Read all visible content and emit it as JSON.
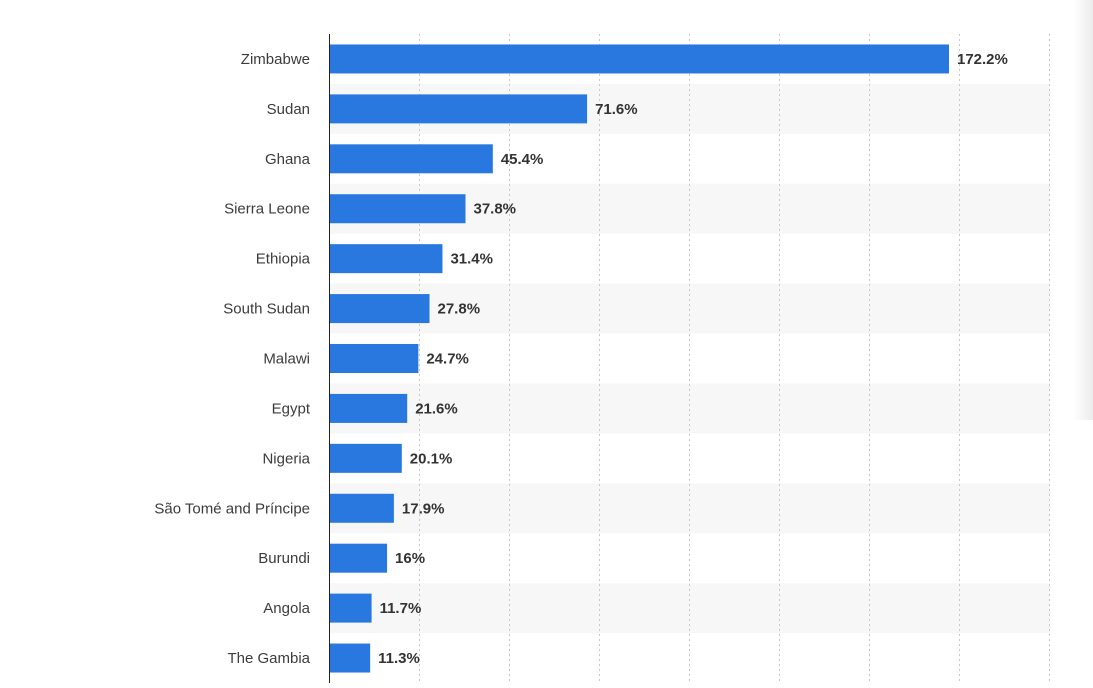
{
  "chart_data": {
    "type": "bar",
    "orientation": "horizontal",
    "categories": [
      "Zimbabwe",
      "Sudan",
      "Ghana",
      "Sierra Leone",
      "Ethiopia",
      "South Sudan",
      "Malawi",
      "Egypt",
      "Nigeria",
      "São Tomé and Príncipe",
      "Burundi",
      "Angola",
      "The Gambia"
    ],
    "values": [
      172.2,
      71.6,
      45.4,
      37.8,
      31.4,
      27.8,
      24.7,
      21.6,
      20.1,
      17.9,
      16,
      11.7,
      11.3
    ],
    "value_labels": [
      "172.2%",
      "71.6%",
      "45.4%",
      "37.8%",
      "31.4%",
      "27.8%",
      "24.7%",
      "21.6%",
      "20.1%",
      "17.9%",
      "16%",
      "11.7%",
      "11.3%"
    ],
    "title": "",
    "xlabel": "",
    "ylabel": "",
    "xlim": [
      0,
      200
    ],
    "x_gridline_step": 25,
    "grid": true,
    "bar_color": "#2878e0",
    "alternate_row_color": "#f7f7f7",
    "legend": "none"
  }
}
